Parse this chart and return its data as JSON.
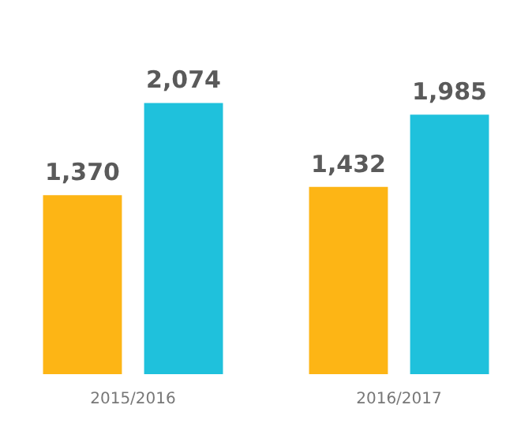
{
  "chart_data": {
    "type": "bar",
    "categories": [
      "2015/2016",
      "2016/2017"
    ],
    "series": [
      {
        "color": "#fdb515",
        "values": [
          1370,
          1432
        ],
        "value_labels": [
          "1,370",
          "1,432"
        ]
      },
      {
        "color": "#1fc1dc",
        "values": [
          2074,
          1985
        ],
        "value_labels": [
          "2,074",
          "1,985"
        ]
      }
    ],
    "grid": false,
    "legend": false
  }
}
